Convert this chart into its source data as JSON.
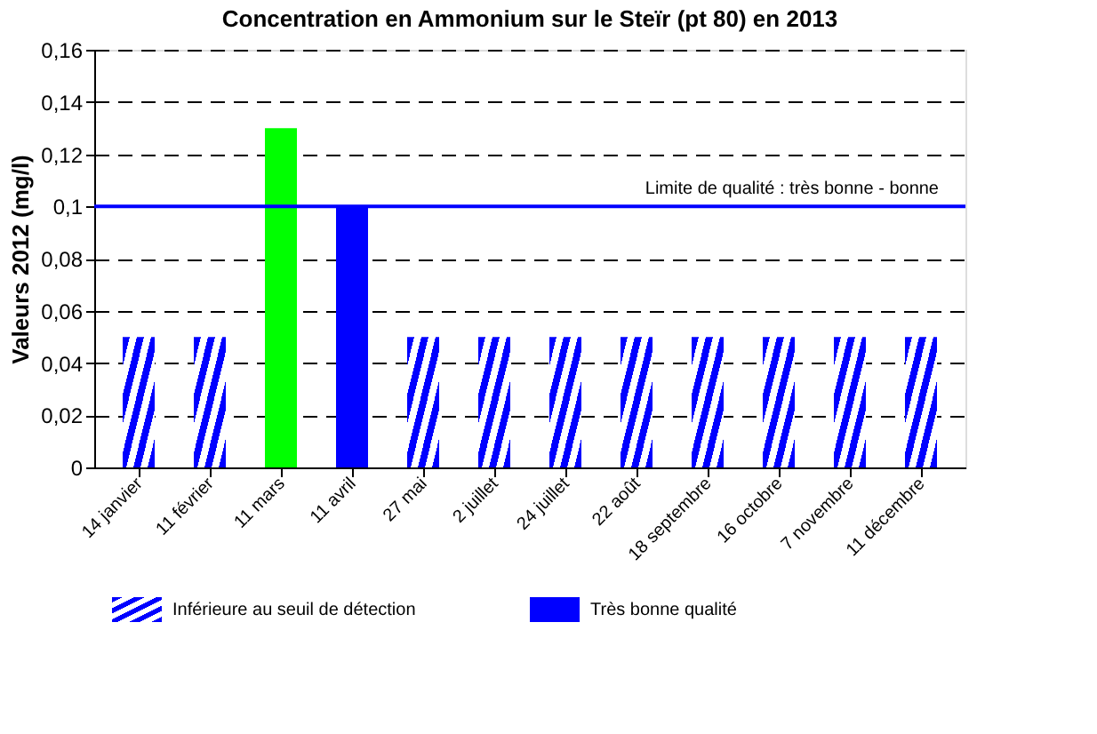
{
  "chart_data": {
    "type": "bar",
    "title": "Concentration en Ammonium sur le Steïr (pt 80) en 2013",
    "ylabel": "Valeurs 2012 (mg/l)",
    "categories": [
      "14 janvier",
      "11 février",
      "11 mars",
      "11 avril",
      "27 mai",
      "2 juillet",
      "24 juillet",
      "22 août",
      "18 septembre",
      "16 octobre",
      "7 novembre",
      "11 décembre"
    ],
    "series": [
      {
        "name": "Inférieure au seuil de détection",
        "color": "#0000ff",
        "values": [
          0.05,
          0.05,
          null,
          null,
          0.05,
          0.05,
          0.05,
          0.05,
          0.05,
          0.05,
          0.05,
          0.05
        ]
      },
      {
        "name": "Très bonne qualité",
        "color": "#0000ff",
        "values": [
          null,
          null,
          null,
          0.1,
          null,
          null,
          null,
          null,
          null,
          null,
          null,
          null
        ]
      },
      {
        "color": "#00ff00",
        "values": [
          null,
          null,
          0.13,
          null,
          null,
          null,
          null,
          null,
          null,
          null,
          null,
          null
        ]
      }
    ],
    "ylim": [
      0,
      0.16
    ],
    "yticks": [
      {
        "value": 0,
        "label": "0"
      },
      {
        "value": 0.02,
        "label": "0,02"
      },
      {
        "value": 0.04,
        "label": "0,04"
      },
      {
        "value": 0.06,
        "label": "0,06"
      },
      {
        "value": 0.08,
        "label": "0,08"
      },
      {
        "value": 0.1,
        "label": "0,1"
      },
      {
        "value": 0.12,
        "label": "0,12"
      },
      {
        "value": 0.14,
        "label": "0,14"
      },
      {
        "value": 0.16,
        "label": "0,16"
      }
    ],
    "ref_lines": [
      {
        "axis": "y",
        "value": 0.1,
        "label": "Limite de qualité : très bonne - bonne",
        "color": "#0000ff"
      }
    ],
    "grid": "y",
    "legend": "bottom"
  }
}
